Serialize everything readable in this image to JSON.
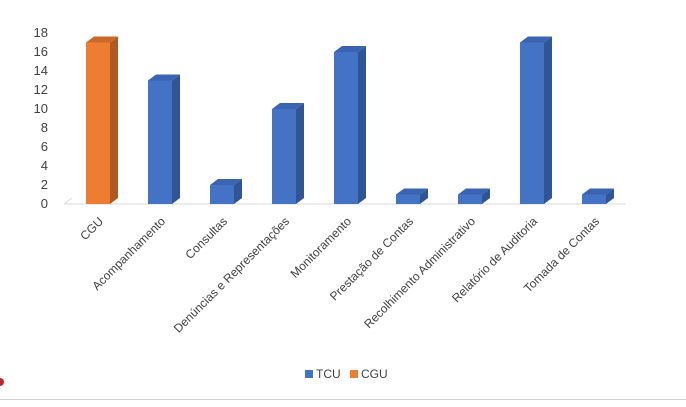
{
  "chart_data": {
    "type": "bar",
    "style": "3d-column",
    "title": "",
    "xlabel": "",
    "ylabel": "",
    "ylim": [
      0,
      18
    ],
    "yticks": [
      0,
      2,
      4,
      6,
      8,
      10,
      12,
      14,
      16,
      18
    ],
    "grid": false,
    "legend_position": "bottom",
    "categories": [
      "CGU",
      "Acompanhamento",
      "Consultas",
      "Denúncias e Representações",
      "Monitoramento",
      "Prestação de Contas",
      "Recolhimento Administrativo",
      "Relatório de Auditoria",
      "Tomada de Contas"
    ],
    "series": [
      {
        "name": "TCU",
        "color": "#4472c4",
        "side_color": "#2f5597",
        "top_color": "#3a64b2",
        "values": [
          null,
          13,
          2,
          10,
          16,
          1,
          1,
          17,
          1
        ]
      },
      {
        "name": "CGU",
        "color": "#ed7d31",
        "side_color": "#ae5a21",
        "top_color": "#c96a28",
        "values": [
          17,
          null,
          null,
          null,
          null,
          null,
          null,
          null,
          null
        ]
      }
    ]
  }
}
